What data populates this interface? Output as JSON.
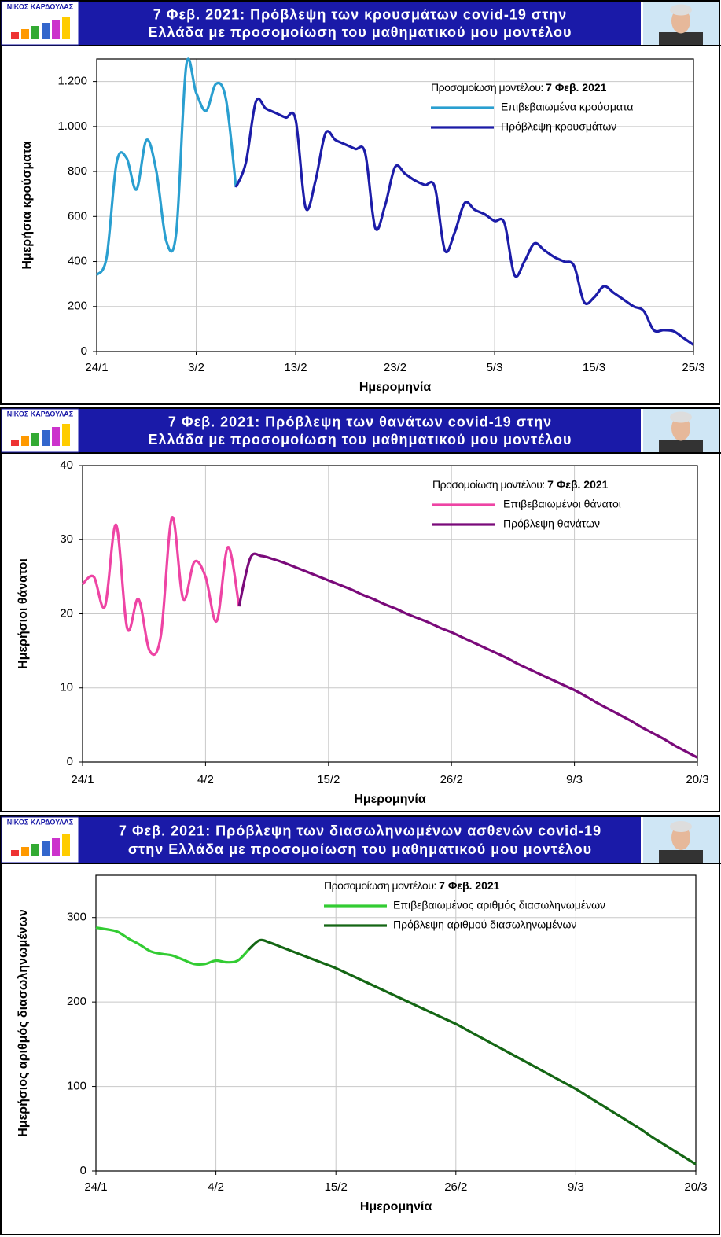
{
  "chart_data": [
    {
      "type": "line",
      "title": [
        "7 Φεβ. 2021:  Πρόβλεψη  των  κρουσμάτων  covid-19  στην",
        "Ελλάδα  με  προσομοίωση  του  μαθηματικού μου  μοντέλου"
      ],
      "logo_text": "ΝΙΚΟΣ ΚΑΡΔΟΥΛΑΣ",
      "legend_title": "Προσομοίωση μοντέλου: ",
      "legend_date": "7 Φεβ. 2021",
      "xlabel": "Ημερομηνία",
      "ylabel": "Ημερήσια κρούσματα",
      "x": [
        "24/1",
        "25/1",
        "26/1",
        "27/1",
        "28/1",
        "29/1",
        "30/1",
        "31/1",
        "1/2",
        "2/2",
        "3/2",
        "4/2",
        "5/2",
        "6/2",
        "7/2",
        "8/2",
        "9/2",
        "10/2",
        "11/2",
        "12/2",
        "13/2",
        "14/2",
        "15/2",
        "16/2",
        "17/2",
        "18/2",
        "19/2",
        "20/2",
        "21/2",
        "22/2",
        "23/2",
        "24/2",
        "25/2",
        "26/2",
        "27/2",
        "28/2",
        "1/3",
        "2/3",
        "3/3",
        "4/3",
        "5/3",
        "6/3",
        "7/3",
        "8/3",
        "9/3",
        "10/3",
        "11/3",
        "12/3",
        "13/3",
        "14/3",
        "15/3",
        "16/3",
        "17/3",
        "18/3",
        "19/3",
        "20/3",
        "21/3",
        "22/3",
        "23/3",
        "24/3",
        "25/3"
      ],
      "xticks": [
        "24/1",
        "3/2",
        "13/2",
        "23/2",
        "5/3",
        "15/3",
        "25/3"
      ],
      "ylim": [
        0,
        1300
      ],
      "yticks": [
        0,
        200,
        400,
        600,
        800,
        {
          "value": 1000,
          "label": "1.000"
        },
        {
          "value": 1200,
          "label": "1.200"
        }
      ],
      "grid": true,
      "series": [
        {
          "name": "Επιβεβαιωμένα κρούσματα",
          "color": "#2a9fd0",
          "values": [
            340,
            420,
            840,
            860,
            720,
            940,
            800,
            490,
            530,
            1270,
            1150,
            1070,
            1190,
            1120,
            730,
            null,
            null,
            null,
            null,
            null,
            null,
            null,
            null,
            null,
            null,
            null,
            null,
            null,
            null,
            null,
            null,
            null,
            null,
            null,
            null,
            null,
            null,
            null,
            null,
            null,
            null,
            null,
            null,
            null,
            null,
            null,
            null,
            null,
            null,
            null,
            null,
            null,
            null,
            null,
            null,
            null,
            null,
            null,
            null,
            null,
            null
          ]
        },
        {
          "name": "Πρόβλεψη κρουσμάτων",
          "color": "#1c1ca8",
          "values": [
            null,
            null,
            null,
            null,
            null,
            null,
            null,
            null,
            null,
            null,
            null,
            null,
            null,
            null,
            730,
            840,
            1110,
            1080,
            1060,
            1040,
            1030,
            640,
            760,
            970,
            940,
            920,
            900,
            880,
            550,
            650,
            820,
            790,
            760,
            740,
            730,
            450,
            530,
            660,
            630,
            610,
            580,
            570,
            340,
            400,
            480,
            450,
            420,
            400,
            380,
            220,
            240,
            290,
            260,
            230,
            200,
            180,
            95,
            95,
            90,
            60,
            30
          ]
        }
      ]
    },
    {
      "type": "line",
      "title": [
        "7 Φεβ. 2021:  Πρόβλεψη  των  θανάτων  covid-19  στην",
        "Ελλάδα  με  προσομοίωση  του  μαθηματικού μου μοντέλου"
      ],
      "logo_text": "ΝΙΚΟΣ ΚΑΡΔΟΥΛΑΣ",
      "legend_title": "Προσομοίωση μοντέλου: ",
      "legend_date": "7 Φεβ. 2021",
      "xlabel": "Ημερομηνία",
      "ylabel": "Ημερήσιοι θάνατοι",
      "x": [
        "24/1",
        "25/1",
        "26/1",
        "27/1",
        "28/1",
        "29/1",
        "30/1",
        "31/1",
        "1/2",
        "2/2",
        "3/2",
        "4/2",
        "5/2",
        "6/2",
        "7/2",
        "8/2",
        "9/2",
        "10/2",
        "11/2",
        "12/2",
        "13/2",
        "14/2",
        "15/2",
        "16/2",
        "17/2",
        "18/2",
        "19/2",
        "20/2",
        "21/2",
        "22/2",
        "23/2",
        "24/2",
        "25/2",
        "26/2",
        "27/2",
        "28/2",
        "1/3",
        "2/3",
        "3/3",
        "4/3",
        "5/3",
        "6/3",
        "7/3",
        "8/3",
        "9/3",
        "10/3",
        "11/3",
        "12/3",
        "13/3",
        "14/3",
        "15/3",
        "16/3",
        "17/3",
        "18/3",
        "19/3",
        "20/3"
      ],
      "xticks": [
        "24/1",
        "4/2",
        "15/2",
        "26/2",
        "9/3",
        "20/3"
      ],
      "ylim": [
        0,
        40
      ],
      "yticks": [
        0,
        10,
        20,
        30,
        40
      ],
      "grid": true,
      "series": [
        {
          "name": "Επιβεβαιωμένοι θάνατοι",
          "color": "#ee44a4",
          "values": [
            24,
            25,
            21,
            32,
            18,
            22,
            15,
            17,
            33,
            22,
            27,
            25,
            19,
            29,
            21,
            null,
            null,
            null,
            null,
            null,
            null,
            null,
            null,
            null,
            null,
            null,
            null,
            null,
            null,
            null,
            null,
            null,
            null,
            null,
            null,
            null,
            null,
            null,
            null,
            null,
            null,
            null,
            null,
            null,
            null,
            null,
            null,
            null,
            null,
            null,
            null,
            null,
            null,
            null,
            null,
            null
          ]
        },
        {
          "name": "Πρόβλεψη θανάτων",
          "color": "#7a0a7a",
          "values": [
            null,
            null,
            null,
            null,
            null,
            null,
            null,
            null,
            null,
            null,
            null,
            null,
            null,
            null,
            21,
            27.5,
            27.8,
            27.4,
            26.9,
            26.3,
            25.7,
            25.1,
            24.5,
            23.9,
            23.3,
            22.6,
            22,
            21.3,
            20.7,
            20,
            19.4,
            18.8,
            18.1,
            17.5,
            16.8,
            16.1,
            15.4,
            14.7,
            14,
            13.2,
            12.5,
            11.8,
            11.1,
            10.4,
            9.7,
            8.9,
            8,
            7.2,
            6.4,
            5.6,
            4.7,
            3.9,
            3.1,
            2.2,
            1.4,
            0.6
          ]
        }
      ]
    },
    {
      "type": "line",
      "title": [
        "7 Φεβ. 2021:  Πρόβλεψη  των  διασωληνωμένων ασθενών covid-19",
        "στην  Ελλάδα  με  προσομοίωση  του  μαθηματικού  μου  μοντέλου"
      ],
      "logo_text": "ΝΙΚΟΣ ΚΑΡΔΟΥΛΑΣ",
      "legend_title": "Προσομοίωση μοντέλου: ",
      "legend_date": "7 Φεβ. 2021",
      "xlabel": "Ημερομηνία",
      "ylabel": "Ημερήσιος αριθμός διασωληνωμένων",
      "x": [
        "24/1",
        "25/1",
        "26/1",
        "27/1",
        "28/1",
        "29/1",
        "30/1",
        "31/1",
        "1/2",
        "2/2",
        "3/2",
        "4/2",
        "5/2",
        "6/2",
        "7/2",
        "8/2",
        "9/2",
        "10/2",
        "11/2",
        "12/2",
        "13/2",
        "14/2",
        "15/2",
        "16/2",
        "17/2",
        "18/2",
        "19/2",
        "20/2",
        "21/2",
        "22/2",
        "23/2",
        "24/2",
        "25/2",
        "26/2",
        "27/2",
        "28/2",
        "1/3",
        "2/3",
        "3/3",
        "4/3",
        "5/3",
        "6/3",
        "7/3",
        "8/3",
        "9/3",
        "10/3",
        "11/3",
        "12/3",
        "13/3",
        "14/3",
        "15/3",
        "16/3",
        "17/3",
        "18/3",
        "19/3",
        "20/3"
      ],
      "xticks": [
        "24/1",
        "4/2",
        "15/2",
        "26/2",
        "9/3",
        "20/3"
      ],
      "ylim": [
        0,
        350
      ],
      "yticks": [
        0,
        100,
        200,
        300
      ],
      "grid": true,
      "series": [
        {
          "name": "Επιβεβαιωμένος αριθμός διασωληνωμένων",
          "color": "#33cc33",
          "values": [
            288,
            286,
            283,
            275,
            268,
            260,
            257,
            255,
            250,
            245,
            245,
            249,
            247,
            249,
            262,
            null,
            null,
            null,
            null,
            null,
            null,
            null,
            null,
            null,
            null,
            null,
            null,
            null,
            null,
            null,
            null,
            null,
            null,
            null,
            null,
            null,
            null,
            null,
            null,
            null,
            null,
            null,
            null,
            null,
            null,
            null,
            null,
            null,
            null,
            null,
            null,
            null,
            null,
            null,
            null,
            null
          ]
        },
        {
          "name": "Πρόβλεψη αριθμού διασωληνωμένων",
          "color": "#146614",
          "values": [
            null,
            null,
            null,
            null,
            null,
            null,
            null,
            null,
            null,
            null,
            null,
            null,
            null,
            null,
            262,
            273,
            270,
            265,
            260,
            255,
            250,
            245,
            240,
            234,
            228,
            222,
            216,
            210,
            204,
            198,
            192,
            186,
            180,
            174,
            167,
            160,
            153,
            146,
            139,
            132,
            125,
            118,
            111,
            104,
            97,
            89,
            81,
            73,
            65,
            57,
            49,
            40,
            32,
            24,
            16,
            8
          ]
        }
      ]
    }
  ]
}
